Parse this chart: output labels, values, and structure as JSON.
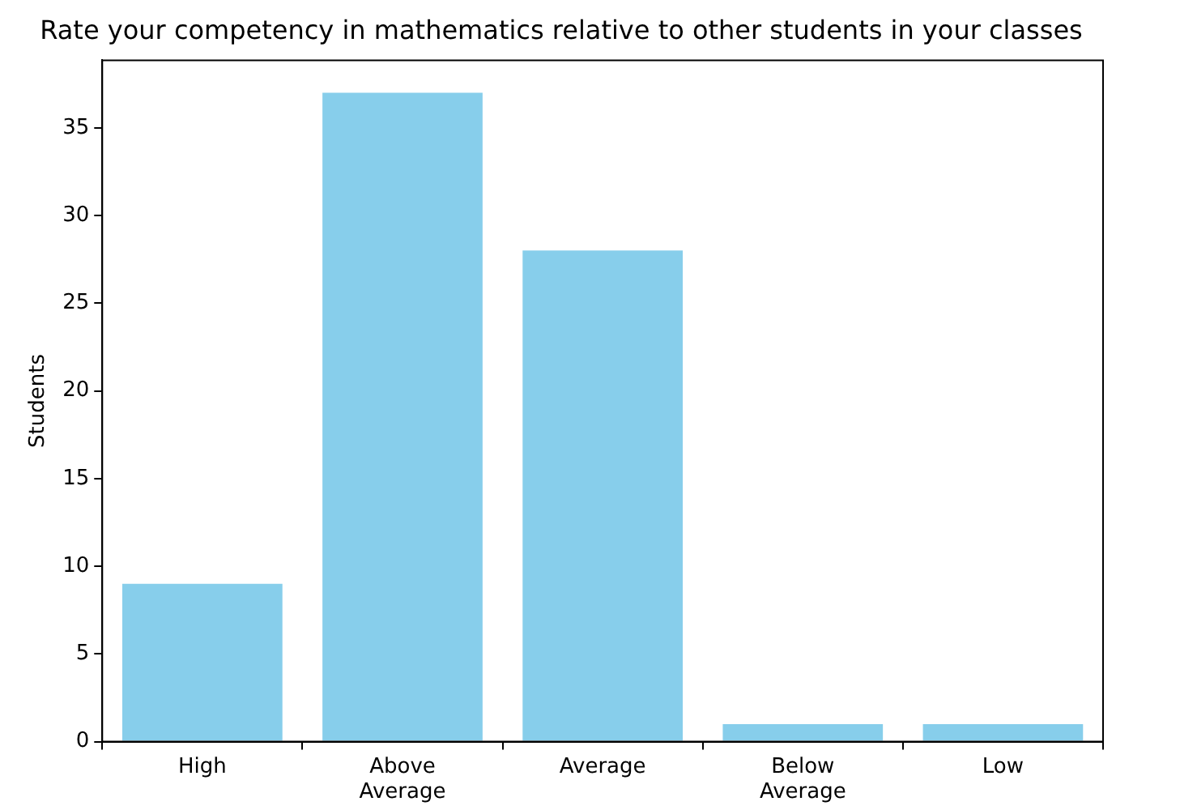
{
  "chart_data": {
    "type": "bar",
    "title": "Rate your competency in mathematics relative to other students in your classes",
    "ylabel": "Students",
    "categories": [
      "High",
      "Above Average",
      "Average",
      "Below Average",
      "Low"
    ],
    "values": [
      9,
      37,
      28,
      1,
      1
    ],
    "color": "#87ceeb",
    "ylim": [
      0,
      38.85
    ],
    "yticks": [
      0,
      5,
      10,
      15,
      20,
      25,
      30,
      35
    ],
    "grid": false,
    "legend": false
  }
}
